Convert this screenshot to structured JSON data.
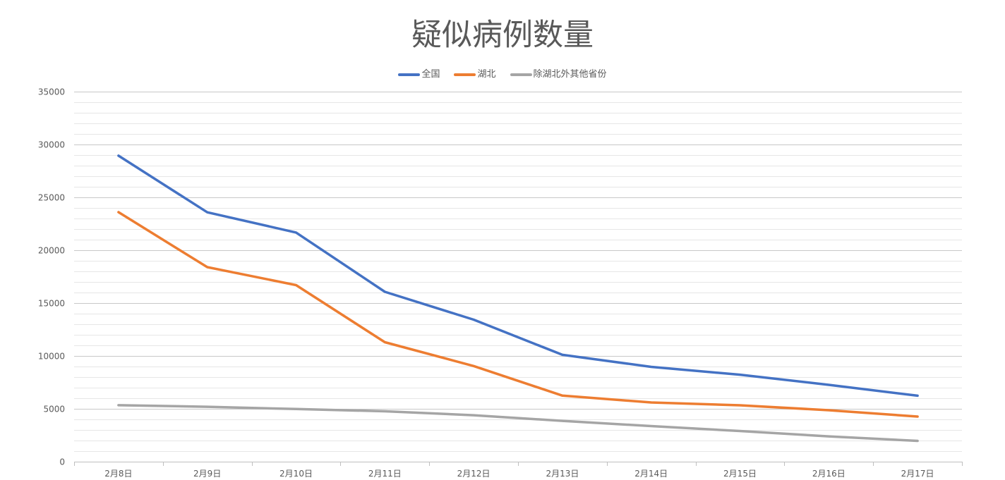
{
  "chart_data": {
    "type": "line",
    "title": "疑似病例数量",
    "categories": [
      "2月8日",
      "2月9日",
      "2月10日",
      "2月11日",
      "2月12日",
      "2月13日",
      "2月14日",
      "2月15日",
      "2月16日",
      "2月17日"
    ],
    "ylim": [
      0,
      35000
    ],
    "yticks": [
      0,
      5000,
      10000,
      15000,
      20000,
      25000,
      30000,
      35000
    ],
    "ytick_labels": [
      "0",
      "5000",
      "10000",
      "15000",
      "20000",
      "25000",
      "30000",
      "35000"
    ],
    "grid": {
      "major": true,
      "minor": true,
      "major_step": 5000,
      "minor_step": 1000
    },
    "legend_position": "top",
    "series": [
      {
        "name": "全国",
        "color": "#4472C4",
        "values": [
          28942,
          23589,
          21675,
          16067,
          13435,
          10109,
          8969,
          8228,
          7264,
          6242
        ]
      },
      {
        "name": "湖北",
        "color": "#ED7D31",
        "values": [
          23600,
          18400,
          16700,
          11300,
          9050,
          6250,
          5600,
          5330,
          4870,
          4270
        ]
      },
      {
        "name": "除湖北外其他省份",
        "color": "#A5A5A5",
        "values": [
          5340,
          5190,
          4980,
          4770,
          4390,
          3860,
          3370,
          2900,
          2390,
          1970
        ]
      }
    ]
  }
}
